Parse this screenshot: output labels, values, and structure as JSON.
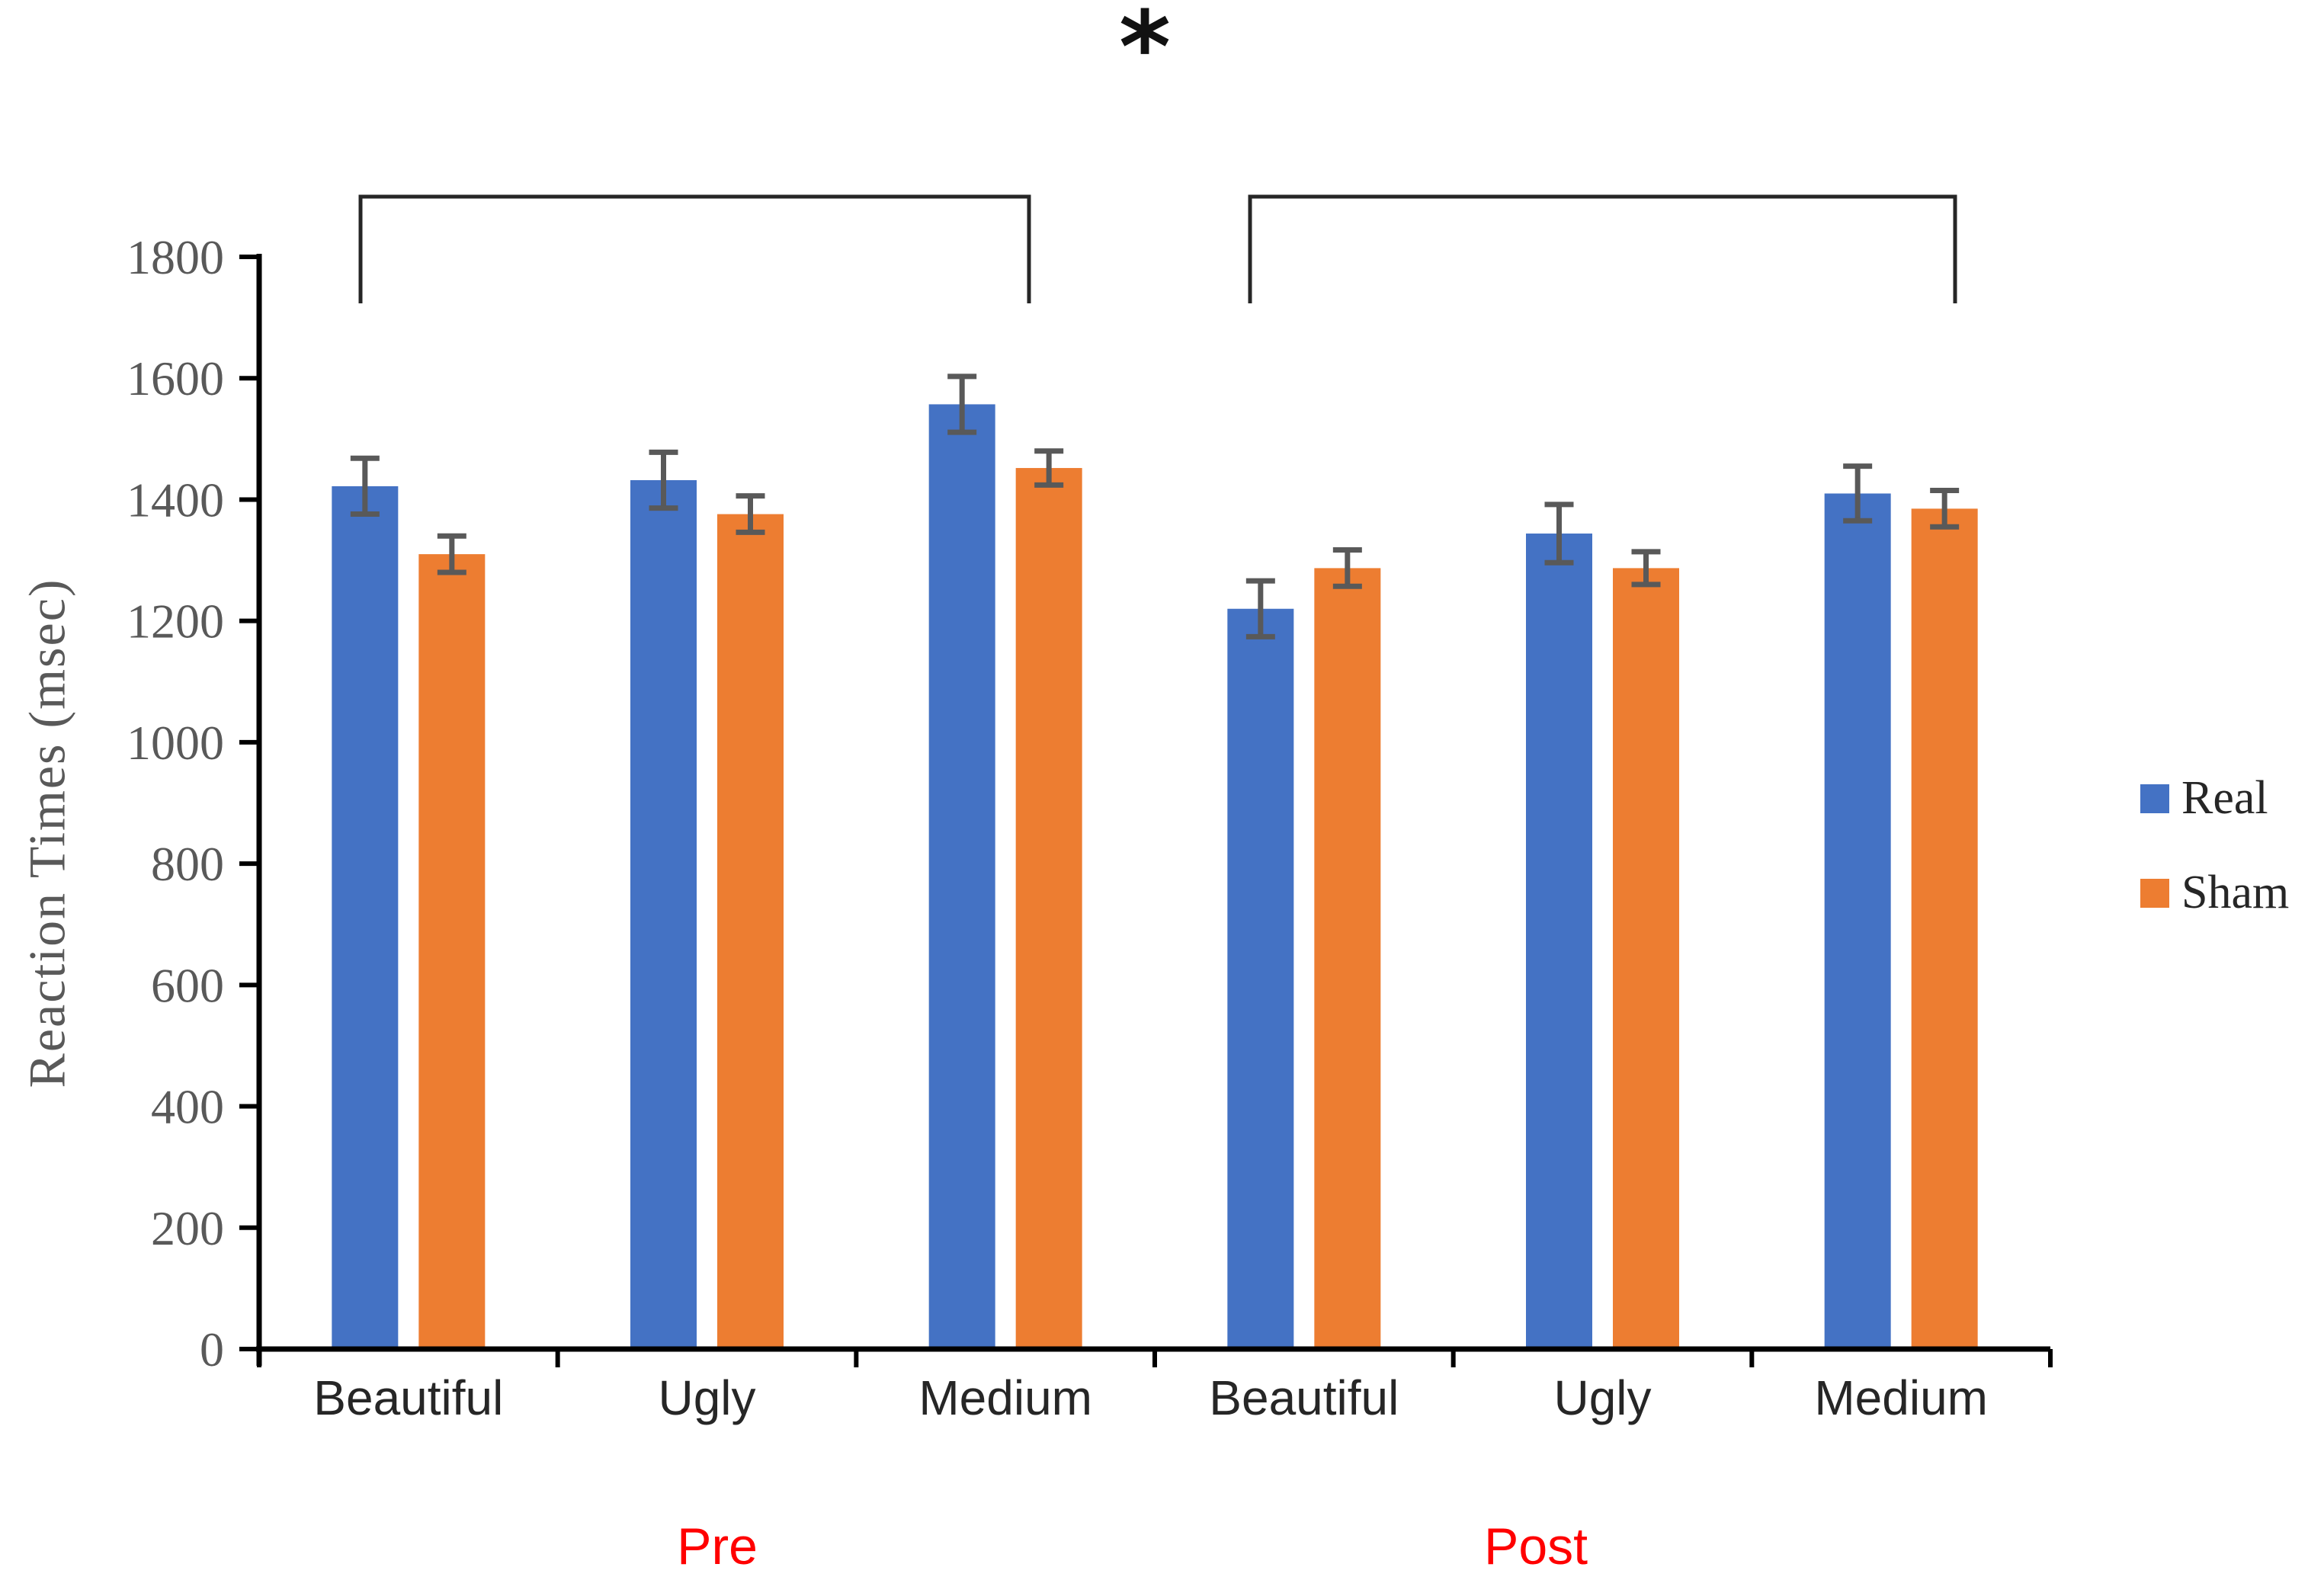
{
  "chart_data": {
    "type": "bar",
    "ylabel": "Reaction Times (msec)",
    "ylim": [
      0,
      1800
    ],
    "yticks": [
      0,
      200,
      400,
      600,
      800,
      1000,
      1200,
      1400,
      1600,
      1800
    ],
    "categories": [
      "Beautiful",
      "Ugly",
      "Medium",
      "Beautiful",
      "Ugly",
      "Medium"
    ],
    "section_labels": [
      {
        "text": "Pre",
        "color": "#ff0000",
        "span": [
          0,
          2
        ]
      },
      {
        "text": "Post",
        "color": "#ff0000",
        "span": [
          3,
          5
        ]
      }
    ],
    "series": [
      {
        "name": "Real",
        "color": "#4472C4",
        "values": [
          1422,
          1432,
          1557,
          1220,
          1344,
          1410
        ],
        "errors": [
          46,
          46,
          46,
          46,
          48,
          45
        ]
      },
      {
        "name": "Sham",
        "color": "#ED7D31",
        "values": [
          1310,
          1376,
          1452,
          1287,
          1287,
          1385
        ],
        "errors": [
          30,
          30,
          28,
          30,
          27,
          30
        ]
      }
    ],
    "significance_label": "*",
    "significance_brackets": [
      {
        "label": "*",
        "categories": [
          0,
          2
        ],
        "section": "Pre"
      },
      {
        "label": "*",
        "categories": [
          3,
          5
        ],
        "section": "Post"
      }
    ],
    "legend_position": "right",
    "grid": false,
    "error_bar_color": "#595959",
    "axis_color": "#000000",
    "tick_label_color": "#595959",
    "category_label_color": "#262626",
    "bracket_color": "#262626"
  }
}
